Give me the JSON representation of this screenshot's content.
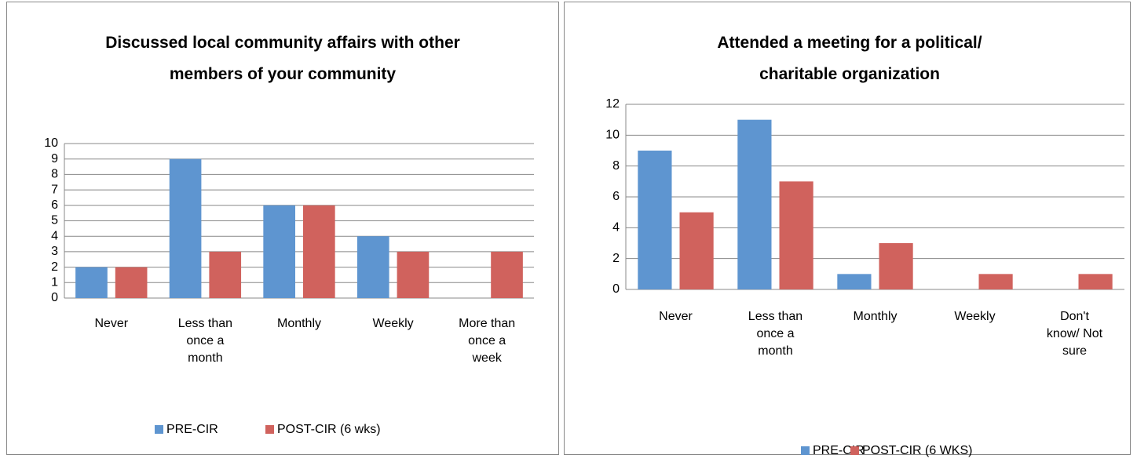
{
  "chart_data": [
    {
      "type": "bar",
      "title": "Discussed local community affairs with other members of your community",
      "categories": [
        "Never",
        "Less than once a month",
        "Monthly",
        "Weekly",
        "More than once a week"
      ],
      "series": [
        {
          "name": "PRE-CIR",
          "color": "#5e95d0",
          "values": [
            2,
            9,
            6,
            4,
            0
          ]
        },
        {
          "name": "POST-CIR (6 wks)",
          "color": "#d0625d",
          "values": [
            2,
            3,
            6,
            3,
            3
          ]
        }
      ],
      "ylim": [
        0,
        10
      ],
      "yticks": [
        0,
        1,
        2,
        3,
        4,
        5,
        6,
        7,
        8,
        9,
        10
      ],
      "grid": true,
      "legend": "bottom"
    },
    {
      "type": "bar",
      "title": "Attended a meeting for a political/ charitable organization",
      "categories": [
        "Never",
        "Less than once a month",
        "Monthly",
        "Weekly",
        "Don't know/ Not sure"
      ],
      "series": [
        {
          "name": "PRE-CIR",
          "color": "#5e95d0",
          "values": [
            9,
            11,
            1,
            0,
            0
          ]
        },
        {
          "name": "POST-CIR (6 WKS)",
          "color": "#d0625d",
          "values": [
            5,
            7,
            3,
            1,
            1
          ]
        }
      ],
      "ylim": [
        0,
        12
      ],
      "yticks": [
        0,
        2,
        4,
        6,
        8,
        10,
        12
      ],
      "grid": true,
      "legend": "bottom"
    }
  ]
}
